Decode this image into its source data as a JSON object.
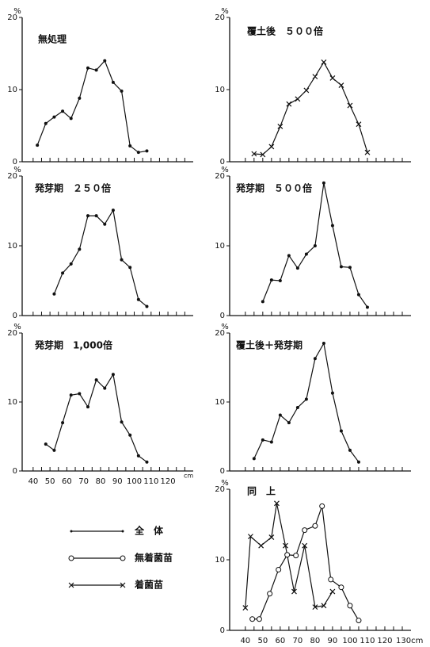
{
  "chart_data": [
    {
      "type": "line",
      "title": "無処理",
      "ylabel": "%",
      "ylim": [
        0,
        20
      ],
      "yticks": [
        0,
        10,
        20
      ],
      "xlim": [
        33.5,
        135
      ],
      "minor_xticks": [
        40,
        45,
        50,
        55,
        60,
        65,
        70,
        75,
        80,
        85,
        90,
        95,
        100,
        105,
        110,
        115,
        120,
        125,
        130
      ],
      "series": [
        {
          "marker": "dot",
          "color": "#111",
          "x": [
            42.5,
            47.5,
            52.5,
            57.5,
            62.5,
            67.5,
            72.5,
            77.5,
            82.5,
            87.5,
            92.5,
            97.5,
            102.5,
            107.5
          ],
          "values": [
            2.3,
            5.3,
            6.2,
            7,
            6,
            8.8,
            13,
            12.7,
            14,
            11,
            9.8,
            2.2,
            1.3,
            1.5
          ]
        }
      ]
    },
    {
      "type": "line",
      "title": "発芽期　２５０倍",
      "ylabel": "%",
      "ylim": [
        0,
        20
      ],
      "yticks": [
        0,
        10,
        20
      ],
      "xlim": [
        33.5,
        135
      ],
      "minor_xticks": [
        40,
        45,
        50,
        55,
        60,
        65,
        70,
        75,
        80,
        85,
        90,
        95,
        100,
        105,
        110,
        115,
        120,
        125,
        130
      ],
      "series": [
        {
          "marker": "dot",
          "color": "#111",
          "x": [
            52.5,
            57.5,
            62.5,
            67.5,
            72.5,
            77.5,
            82.5,
            87.5,
            92.5,
            97.5,
            102.5,
            107.5
          ],
          "values": [
            3.1,
            6.1,
            7.4,
            9.5,
            14.3,
            14.3,
            13.1,
            15.1,
            8,
            6.9,
            2.3,
            1.3
          ]
        }
      ]
    },
    {
      "type": "line",
      "title": "発芽期　1,000倍",
      "ylabel": "%",
      "xlabel": "cm",
      "ylim": [
        0,
        20
      ],
      "yticks": [
        0,
        10,
        20
      ],
      "xlim": [
        33.5,
        135
      ],
      "xticks": [
        40,
        50,
        60,
        70,
        80,
        90,
        100,
        110,
        120
      ],
      "minor_xticks": [
        45,
        55,
        65,
        75,
        85,
        95,
        105,
        115,
        125,
        130
      ],
      "series": [
        {
          "marker": "dot",
          "color": "#111",
          "x": [
            47.5,
            52.5,
            57.5,
            62.5,
            67.5,
            72.5,
            77.5,
            82.5,
            87.5,
            92.5,
            97.5,
            102.5,
            107.5
          ],
          "values": [
            3.9,
            3,
            7,
            11,
            11.2,
            9.3,
            13.2,
            12,
            14,
            7.1,
            5.2,
            2.2,
            1.3
          ]
        }
      ]
    },
    {
      "type": "line",
      "title": "覆土後　５００倍",
      "ylabel": "%",
      "ylim": [
        0,
        20
      ],
      "yticks": [
        0,
        10,
        20
      ],
      "xlim": [
        31,
        135
      ],
      "minor_xticks": [
        40,
        45,
        50,
        55,
        60,
        65,
        70,
        75,
        80,
        85,
        90,
        95,
        100,
        105,
        110,
        115,
        120,
        125,
        130
      ],
      "series": [
        {
          "marker": "x",
          "color": "#111",
          "x": [
            45,
            50,
            55,
            60,
            65,
            70,
            75,
            80,
            85,
            90,
            95,
            100,
            105,
            110
          ],
          "values": [
            1.1,
            1,
            2.1,
            4.9,
            8,
            8.7,
            9.9,
            11.8,
            13.8,
            11.6,
            10.6,
            7.8,
            5.2,
            1.3
          ]
        }
      ]
    },
    {
      "type": "line",
      "title": "発芽期　５００倍",
      "ylabel": "%",
      "ylim": [
        0,
        20
      ],
      "yticks": [
        0,
        10,
        20
      ],
      "xlim": [
        31,
        135
      ],
      "minor_xticks": [
        40,
        45,
        50,
        55,
        60,
        65,
        70,
        75,
        80,
        85,
        90,
        95,
        100,
        105,
        110,
        115,
        120,
        125,
        130
      ],
      "series": [
        {
          "marker": "dot",
          "color": "#111",
          "x": [
            50,
            55,
            60,
            65,
            70,
            75,
            80,
            85,
            90,
            95,
            100,
            105,
            110
          ],
          "values": [
            2,
            5.1,
            5,
            8.6,
            6.8,
            8.8,
            10,
            19,
            12.9,
            7,
            6.9,
            3,
            1.2
          ]
        }
      ]
    },
    {
      "type": "line",
      "title": "覆土後＋発芽期",
      "ylabel": "%",
      "ylim": [
        0,
        20
      ],
      "yticks": [
        0,
        10,
        20
      ],
      "xlim": [
        31,
        135
      ],
      "minor_xticks": [
        40,
        45,
        50,
        55,
        60,
        65,
        70,
        75,
        80,
        85,
        90,
        95,
        100,
        105,
        110,
        115,
        120,
        125,
        130
      ],
      "series": [
        {
          "marker": "dot",
          "color": "#111",
          "x": [
            45,
            50,
            55,
            60,
            65,
            70,
            75,
            80,
            85,
            90,
            95,
            100,
            105
          ],
          "values": [
            1.8,
            4.5,
            4.2,
            8.1,
            7,
            9.2,
            10.4,
            16.3,
            18.5,
            11.3,
            5.8,
            3,
            1.3
          ]
        }
      ]
    },
    {
      "type": "line",
      "title": "同　上",
      "ylabel": "%",
      "ylim": [
        0,
        20
      ],
      "yticks": [
        0,
        10,
        20
      ],
      "xlim": [
        31,
        135
      ],
      "xticks": [
        40,
        50,
        60,
        70,
        80,
        90,
        100,
        110,
        120,
        {
          "value": 130,
          "label": "130cm"
        }
      ],
      "minor_xticks": [
        45,
        55,
        65,
        75,
        85,
        95,
        105,
        115,
        125
      ],
      "series": [
        {
          "marker": "x",
          "color": "#111",
          "x": [
            40,
            43,
            49,
            55,
            58,
            63,
            68,
            74,
            80,
            85,
            90
          ],
          "values": [
            3.2,
            13.3,
            12,
            13.2,
            18,
            12,
            5.5,
            12,
            3.3,
            3.5,
            5.5
          ]
        },
        {
          "marker": "circle",
          "color": "#111",
          "x": [
            44,
            48,
            54,
            59,
            64,
            69,
            74,
            80,
            84,
            89,
            95,
            100,
            105
          ],
          "values": [
            1.6,
            1.6,
            5.2,
            8.6,
            10.7,
            10.6,
            14.2,
            14.8,
            17.6,
            7.2,
            6.1,
            3.5,
            1.4
          ]
        }
      ]
    }
  ],
  "legend": [
    {
      "label": "全　体",
      "marker": "none"
    },
    {
      "label": "無着菌苗",
      "marker": "circle"
    },
    {
      "label": "着菌苗",
      "marker": "x"
    }
  ]
}
